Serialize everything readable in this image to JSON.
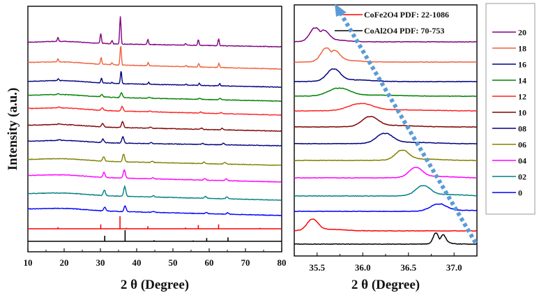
{
  "chart_data": [
    {
      "type": "line",
      "panel": "left",
      "title": "",
      "xlabel": "2 θ (Degree)",
      "ylabel": "Intensity (a.u.)",
      "xlim": [
        10,
        80
      ],
      "xticks": [
        10,
        20,
        30,
        40,
        50,
        60,
        70,
        80
      ],
      "yticks_shown": false,
      "grid": false,
      "series": [
        {
          "name": "20",
          "color": "#800080",
          "peaks": [
            [
              18.3,
              0.15
            ],
            [
              30.1,
              0.35
            ],
            [
              33.2,
              0.12
            ],
            [
              35.5,
              1.0
            ],
            [
              43.1,
              0.18
            ],
            [
              53.5,
              0.06
            ],
            [
              57.0,
              0.2
            ],
            [
              62.6,
              0.25
            ]
          ]
        },
        {
          "name": "18",
          "color": "#f0603c",
          "peaks": [
            [
              18.3,
              0.15
            ],
            [
              30.2,
              0.35
            ],
            [
              33.2,
              0.1
            ],
            [
              35.6,
              1.0
            ],
            [
              43.2,
              0.16
            ],
            [
              53.6,
              0.06
            ],
            [
              57.1,
              0.18
            ],
            [
              62.7,
              0.22
            ]
          ]
        },
        {
          "name": "16",
          "color": "#000080",
          "peaks": [
            [
              18.4,
              0.15
            ],
            [
              30.3,
              0.35
            ],
            [
              33.2,
              0.08
            ],
            [
              35.7,
              0.9
            ],
            [
              43.3,
              0.14
            ],
            [
              53.7,
              0.06
            ],
            [
              57.3,
              0.15
            ],
            [
              62.9,
              0.18
            ]
          ]
        },
        {
          "name": "14",
          "color": "#008000",
          "peaks": [
            [
              18.4,
              0.12
            ],
            [
              30.4,
              0.3
            ],
            [
              35.8,
              0.6
            ],
            [
              43.4,
              0.1
            ],
            [
              57.4,
              0.12
            ],
            [
              63.0,
              0.15
            ]
          ]
        },
        {
          "name": "12",
          "color": "#ff2020",
          "peaks": [
            [
              18.5,
              0.12
            ],
            [
              30.5,
              0.3
            ],
            [
              36.0,
              0.55
            ],
            [
              43.6,
              0.1
            ],
            [
              57.7,
              0.12
            ],
            [
              63.3,
              0.14
            ]
          ]
        },
        {
          "name": "10",
          "color": "#800000",
          "peaks": [
            [
              18.6,
              0.1
            ],
            [
              30.6,
              0.35
            ],
            [
              36.1,
              0.6
            ],
            [
              43.8,
              0.1
            ],
            [
              57.9,
              0.13
            ],
            [
              63.6,
              0.15
            ]
          ]
        },
        {
          "name": "08",
          "color": "#000080",
          "peaks": [
            [
              18.7,
              0.1
            ],
            [
              30.7,
              0.35
            ],
            [
              36.2,
              0.65
            ],
            [
              44.0,
              0.1
            ],
            [
              58.2,
              0.13
            ],
            [
              63.9,
              0.15
            ]
          ]
        },
        {
          "name": "06",
          "color": "#808000",
          "peaks": [
            [
              30.9,
              0.4
            ],
            [
              36.4,
              0.7
            ],
            [
              44.3,
              0.1
            ],
            [
              58.6,
              0.14
            ],
            [
              64.3,
              0.16
            ]
          ]
        },
        {
          "name": "04",
          "color": "#ff00ff",
          "peaks": [
            [
              31.0,
              0.45
            ],
            [
              36.6,
              0.75
            ],
            [
              44.5,
              0.1
            ],
            [
              58.8,
              0.14
            ],
            [
              64.7,
              0.16
            ]
          ]
        },
        {
          "name": "02",
          "color": "#008080",
          "peaks": [
            [
              31.1,
              0.45
            ],
            [
              36.7,
              0.8
            ],
            [
              44.6,
              0.1
            ],
            [
              59.0,
              0.14
            ],
            [
              64.9,
              0.16
            ]
          ]
        },
        {
          "name": "0",
          "color": "#0000ff",
          "peaks": [
            [
              31.2,
              0.4
            ],
            [
              36.8,
              0.6
            ],
            [
              44.7,
              0.1
            ],
            [
              59.2,
              0.14
            ],
            [
              65.1,
              0.16
            ]
          ]
        },
        {
          "name": "CoFe2O4 PDF: 22-1086",
          "color": "#ff0000",
          "reference": true,
          "peaks": [
            [
              18.3,
              0.12
            ],
            [
              30.1,
              0.35
            ],
            [
              35.4,
              1.0
            ],
            [
              37.1,
              0.08
            ],
            [
              43.1,
              0.2
            ],
            [
              53.5,
              0.1
            ],
            [
              57.0,
              0.3
            ],
            [
              62.6,
              0.35
            ],
            [
              74.0,
              0.08
            ]
          ]
        },
        {
          "name": "CoAl2O4 PDF: 70-753",
          "color": "#000000",
          "reference": true,
          "peaks": [
            [
              31.2,
              0.5
            ],
            [
              36.8,
              1.0
            ],
            [
              44.8,
              0.1
            ],
            [
              55.6,
              0.08
            ],
            [
              59.3,
              0.3
            ],
            [
              65.2,
              0.35
            ],
            [
              77.3,
              0.05
            ]
          ]
        }
      ]
    },
    {
      "type": "line",
      "panel": "right",
      "title": "",
      "xlabel": "2 θ (Degree)",
      "ylabel": "",
      "xlim": [
        35.25,
        37.25
      ],
      "xticks": [
        35.5,
        36.0,
        36.5,
        37.0
      ],
      "yticks_shown": false,
      "grid": false,
      "legend": {
        "placement": "right-outside",
        "entries": [
          "20",
          "18",
          "16",
          "14",
          "12",
          "10",
          "08",
          "06",
          "04",
          "02",
          "0"
        ]
      },
      "reference_legend": {
        "placement": "top",
        "entries": [
          {
            "label": "CoFe2O4 PDF: 22-1086",
            "color": "#ff0000"
          },
          {
            "label": "CoAl2O4 PDF: 70-753",
            "color": "#000000"
          }
        ]
      },
      "annotation": {
        "type": "dotted-arrow",
        "color": "#5b9bd5",
        "from": [
          37.25,
          "bottom"
        ],
        "to": [
          35.7,
          "top"
        ],
        "meaning": "peak shift toward lower angle with increasing x"
      },
      "series": [
        {
          "name": "20",
          "color": "#800080",
          "peak_center": 35.48,
          "peak_width": 0.08,
          "shoulder": 35.57
        },
        {
          "name": "18",
          "color": "#f0603c",
          "peak_center": 35.6,
          "peak_width": 0.08,
          "shoulder": 35.69
        },
        {
          "name": "16",
          "color": "#000080",
          "peak_center": 35.68,
          "peak_width": 0.1
        },
        {
          "name": "14",
          "color": "#008000",
          "peak_center": 35.74,
          "peak_width": 0.16
        },
        {
          "name": "12",
          "color": "#ff2020",
          "peak_center": 35.98,
          "peak_width": 0.18
        },
        {
          "name": "10",
          "color": "#800000",
          "peak_center": 36.08,
          "peak_width": 0.12
        },
        {
          "name": "08",
          "color": "#000080",
          "peak_center": 36.24,
          "peak_width": 0.12
        },
        {
          "name": "06",
          "color": "#808000",
          "peak_center": 36.43,
          "peak_width": 0.1
        },
        {
          "name": "04",
          "color": "#ff00ff",
          "peak_center": 36.58,
          "peak_width": 0.1
        },
        {
          "name": "02",
          "color": "#008080",
          "peak_center": 36.66,
          "peak_width": 0.11
        },
        {
          "name": "0",
          "color": "#0000ff",
          "peak_center": 36.83,
          "peak_width": 0.12
        },
        {
          "name": "CoFe2O4 PDF: 22-1086",
          "color": "#ff0000",
          "peak_center": 35.45,
          "peak_width": 0.08
        },
        {
          "name": "CoAl2O4 PDF: 70-753",
          "color": "#000000",
          "peak_center": 36.8,
          "peak_width": 0.04,
          "shoulder": 36.88
        }
      ]
    }
  ]
}
